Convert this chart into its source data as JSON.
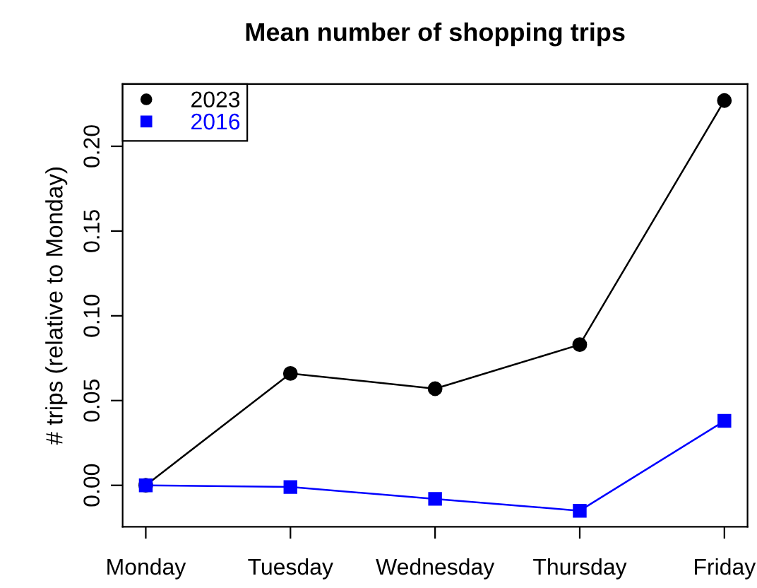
{
  "chart_data": {
    "type": "line",
    "title": "Mean number of shopping trips",
    "ylabel": "# trips (relative to Monday)",
    "categories": [
      "Monday",
      "Tuesday",
      "Wednesday",
      "Thursday",
      "Friday"
    ],
    "series": [
      {
        "name": "2023",
        "color": "#000000",
        "marker": "circle",
        "values": [
          0,
          0.066,
          0.057,
          0.083,
          0.227
        ]
      },
      {
        "name": "2016",
        "color": "#0000ff",
        "marker": "square",
        "values": [
          0,
          -0.001,
          -0.008,
          -0.015,
          0.038
        ]
      }
    ],
    "ylim": [
      -0.0245,
      0.2367
    ],
    "yticks": [
      {
        "value": 0,
        "label": "0.00"
      },
      {
        "value": 0.05,
        "label": "0.05"
      },
      {
        "value": 0.1,
        "label": "0.10"
      },
      {
        "value": 0.15,
        "label": "0.15"
      },
      {
        "value": 0.2,
        "label": "0.20"
      }
    ],
    "grid": false,
    "legend": "top left",
    "line_style": "solid"
  }
}
